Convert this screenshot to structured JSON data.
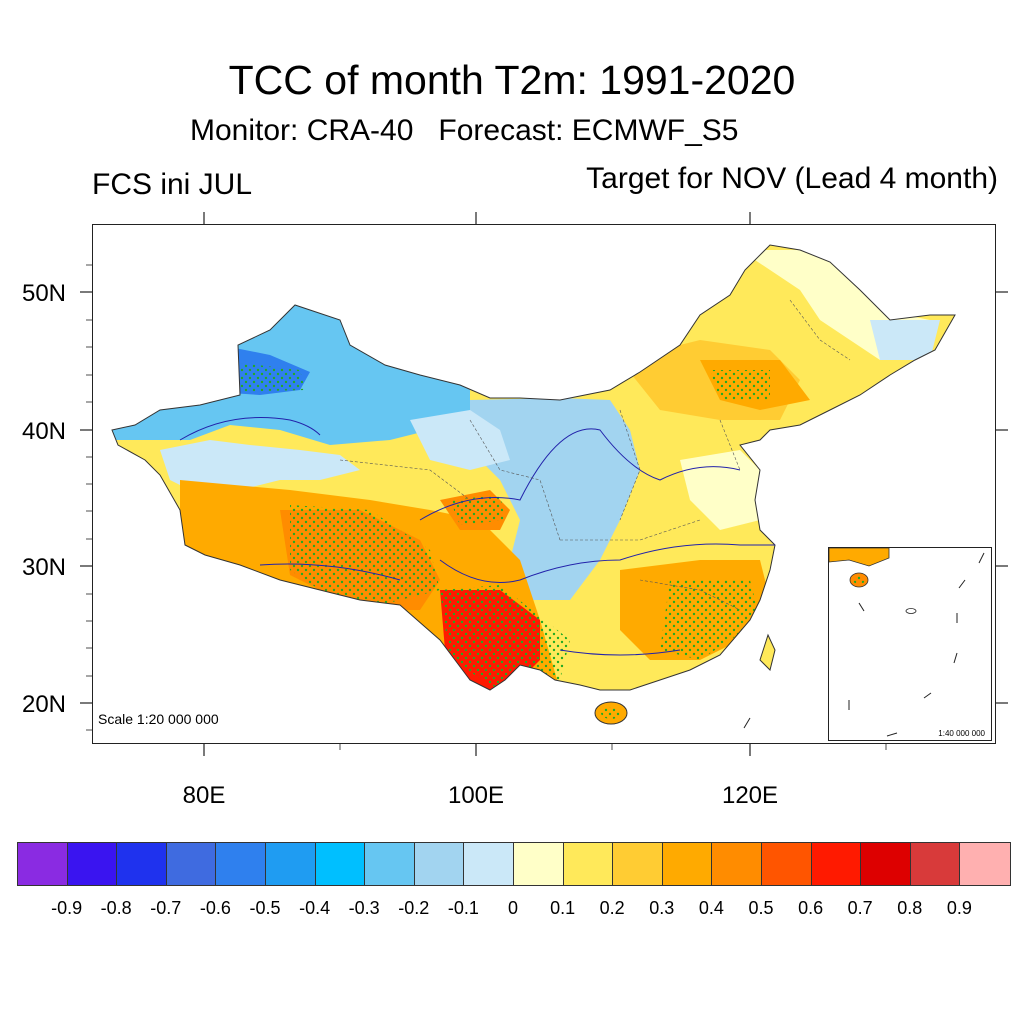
{
  "header": {
    "title": "TCC of month T2m: 1991-2020",
    "subtitle": "Monitor: CRA-40   Forecast: ECMWF_S5",
    "left_label": "FCS ini JUL",
    "right_label": "Target for NOV (Lead 4 month)"
  },
  "axes": {
    "lat_labels": [
      "50N",
      "40N",
      "30N",
      "20N"
    ],
    "lon_labels": [
      "80E",
      "100E",
      "120E"
    ]
  },
  "map": {
    "scale_text": "Scale 1:20 000 000",
    "inset_scale_text": "1:40 000 000",
    "stipple_note": "green dots mark significant correlation"
  },
  "colorbar": {
    "colors": [
      "#8a2be2",
      "#3a14f0",
      "#1f32ee",
      "#3f6be0",
      "#2f80ee",
      "#1f9cf2",
      "#00bfff",
      "#66c6f2",
      "#a2d4f0",
      "#cbe8f8",
      "#ffffc8",
      "#ffe95a",
      "#ffcc33",
      "#ffaa00",
      "#ff8c00",
      "#ff5500",
      "#ff1a00",
      "#dd0000",
      "#d83a3a",
      "#ffb0b0"
    ],
    "labels": [
      "-0.9",
      "-0.8",
      "-0.7",
      "-0.6",
      "-0.5",
      "-0.4",
      "-0.3",
      "-0.2",
      "-0.1",
      "0",
      "0.1",
      "0.2",
      "0.3",
      "0.4",
      "0.5",
      "0.6",
      "0.7",
      "0.8",
      "0.9"
    ]
  }
}
